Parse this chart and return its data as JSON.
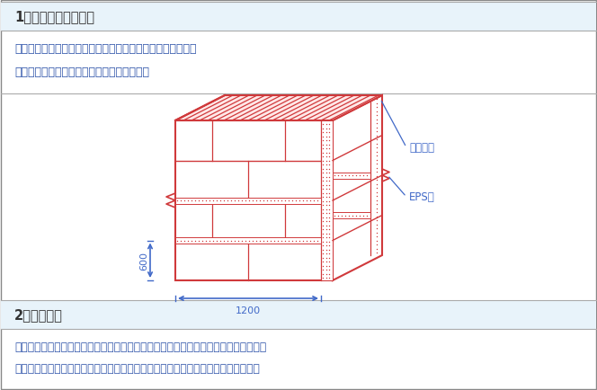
{
  "title1": "1、绘制固化图并编号",
  "text1a": "施工要点：绘制安装排版图，加工、制作、编号，运至现场。",
  "text1b": "控制标准：根据设计图纸确定排版分格方案。",
  "title2": "2、基层处理",
  "text2a": "施工要点：混凝土墙面：发泡封堵螺杆眼、清理墙面浮灰等；砌体墙面：砂浆找平层。",
  "text2b": "控制标准：基层应平整、清洁，除掉松动空壳部位，填补裂缝、凹洞，易于起粉施工",
  "label_jiceng": "基层墙体",
  "label_eps": "EPS板",
  "dim_600": "600",
  "dim_1200": "1200",
  "red_color": "#D0393B",
  "blue_color": "#4169C8",
  "bg_color": "#FFFFFF",
  "header_bg": "#E8F3FA",
  "border_color": "#999999",
  "text_color": "#333333",
  "text_blue": "#3055AA"
}
